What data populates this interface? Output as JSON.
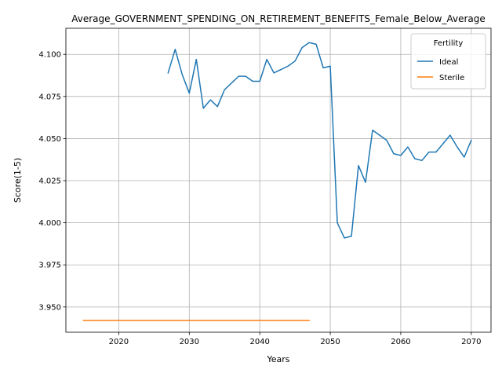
{
  "chart_data": {
    "type": "line",
    "title": "Average_GOVERNMENT_SPENDING_ON_RETIREMENT_BENEFITS_Female_Below_Average",
    "xlabel": "Years",
    "ylabel": "Score(1-5)",
    "xlim": [
      2012.5,
      2072.8
    ],
    "ylim": [
      3.935,
      4.1155
    ],
    "xticks": [
      2020,
      2030,
      2040,
      2050,
      2060,
      2070
    ],
    "yticks": [
      3.95,
      3.975,
      4.0,
      4.025,
      4.05,
      4.075,
      4.1
    ],
    "xtick_labels": [
      "2020",
      "2030",
      "2040",
      "2050",
      "2060",
      "2070"
    ],
    "ytick_labels": [
      "3.950",
      "3.975",
      "4.000",
      "4.025",
      "4.050",
      "4.075",
      "4.100"
    ],
    "grid": true,
    "legend": {
      "title": "Fertility",
      "position": "top-right"
    },
    "series": [
      {
        "name": "Ideal",
        "color": "#1f77b4",
        "x": [
          2027,
          2028,
          2029,
          2030,
          2031,
          2032,
          2033,
          2034,
          2035,
          2036,
          2037,
          2038,
          2039,
          2040,
          2041,
          2042,
          2043,
          2044,
          2045,
          2046,
          2047,
          2048,
          2049,
          2050,
          2051,
          2052,
          2053,
          2054,
          2055,
          2056,
          2057,
          2058,
          2059,
          2060,
          2061,
          2062,
          2063,
          2064,
          2065,
          2066,
          2067,
          2068,
          2069,
          2070
        ],
        "y": [
          4.089,
          4.103,
          4.088,
          4.077,
          4.097,
          4.068,
          4.073,
          4.069,
          4.079,
          4.083,
          4.087,
          4.087,
          4.084,
          4.084,
          4.097,
          4.089,
          4.091,
          4.093,
          4.096,
          4.104,
          4.107,
          4.106,
          4.092,
          4.093,
          4.0,
          3.991,
          3.992,
          4.034,
          4.024,
          4.055,
          4.052,
          4.049,
          4.041,
          4.04,
          4.045,
          4.038,
          4.037,
          4.042,
          4.042,
          4.047,
          4.052,
          4.045,
          4.039,
          4.049
        ]
      },
      {
        "name": "Sterile",
        "color": "#ff7f0e",
        "x": [
          2015,
          2047
        ],
        "y": [
          3.942,
          3.942
        ]
      }
    ]
  }
}
